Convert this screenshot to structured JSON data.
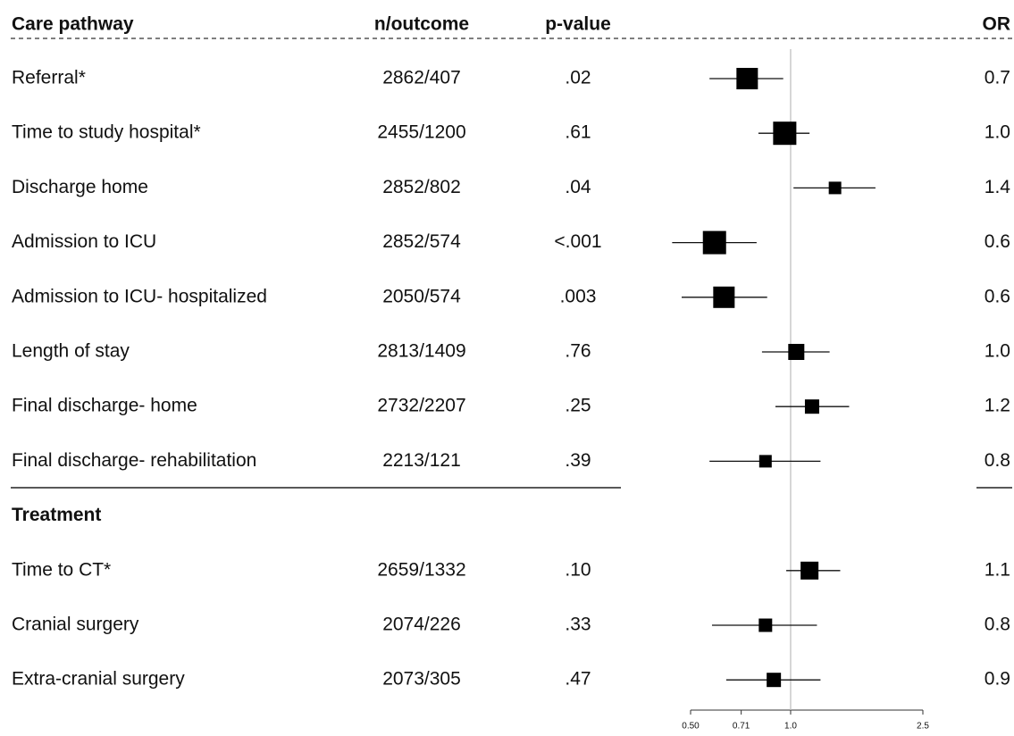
{
  "chart_data": {
    "type": "forest",
    "log_x": true,
    "headers": {
      "label": "Care pathway",
      "n": "n/outcome",
      "p": "p-value",
      "or": "OR"
    },
    "xlim": [
      0.5,
      2.5
    ],
    "xticks": [
      {
        "value": 0.5,
        "label": "0.50"
      },
      0.71,
      {
        "value": 1,
        "label": "1.0"
      },
      2.5
    ],
    "groups": [
      {
        "rows": [
          {
            "label": "Referral*",
            "n": "2862/407",
            "p": ".02",
            "value": 0.74,
            "value_label": "0.7",
            "ci": [
              0.57,
              0.95
            ],
            "weight": 24
          },
          {
            "label": "Time to study hospital*",
            "n": "2455/1200",
            "p": ".61",
            "value": 0.96,
            "value_label": "1.0",
            "ci": [
              0.8,
              1.14
            ],
            "weight": 26
          },
          {
            "label": "Discharge home",
            "n": "2852/802",
            "p": ".04",
            "value": 1.36,
            "value_label": "1.4",
            "ci": [
              1.02,
              1.8
            ],
            "weight": 14
          },
          {
            "label": "Admission to ICU",
            "n": "2852/574",
            "p": "<.001",
            "value": 0.59,
            "value_label": "0.6",
            "ci": [
              0.44,
              0.79
            ],
            "weight": 26
          },
          {
            "label": "Admission to ICU- hospitalized",
            "n": "2050/574",
            "p": ".003",
            "value": 0.63,
            "value_label": "0.6",
            "ci": [
              0.47,
              0.85
            ],
            "weight": 24
          },
          {
            "label": "Length of stay",
            "n": "2813/1409",
            "p": ".76",
            "value": 1.04,
            "value_label": "1.0",
            "ci": [
              0.82,
              1.31
            ],
            "weight": 18
          },
          {
            "label": "Final discharge- home",
            "n": "2732/2207",
            "p": ".25",
            "value": 1.16,
            "value_label": "1.2",
            "ci": [
              0.9,
              1.5
            ],
            "weight": 16
          },
          {
            "label": "Final discharge- rehabilitation",
            "n": "2213/121",
            "p": ".39",
            "value": 0.84,
            "value_label": "0.8",
            "ci": [
              0.57,
              1.23
            ],
            "weight": 14
          }
        ]
      },
      {
        "title": "Treatment",
        "rows": [
          {
            "label": "Time to CT*",
            "n": "2659/1332",
            "p": ".10",
            "value": 1.14,
            "value_label": "1.1",
            "ci": [
              0.97,
              1.41
            ],
            "weight": 20
          },
          {
            "label": "Cranial surgery",
            "n": "2074/226",
            "p": ".33",
            "value": 0.84,
            "value_label": "0.8",
            "ci": [
              0.58,
              1.2
            ],
            "weight": 15
          },
          {
            "label": "Extra-cranial surgery",
            "n": "2073/305",
            "p": ".47",
            "value": 0.89,
            "value_label": "0.9",
            "ci": [
              0.64,
              1.23
            ],
            "weight": 16
          }
        ]
      }
    ]
  }
}
